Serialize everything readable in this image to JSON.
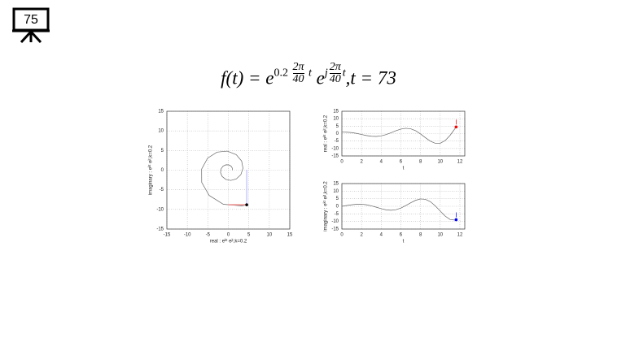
{
  "slide_number": "75",
  "formula": {
    "lhs": "f(t) =",
    "base": "e",
    "coef": "0.2",
    "num": "2π",
    "den": "40",
    "var": "t",
    "j": "j",
    "sep": ",",
    "tail": "t = 73"
  },
  "chart_data": [
    {
      "type": "line",
      "xlabel": "real : eᵏᵗ eʲᵗ,k=0.2",
      "ylabel": "imaginary : eᵏᵗ eʲᵗ,k=0.2",
      "x": [
        1,
        0.97,
        0.67,
        0.12,
        -0.58,
        -1.28,
        -1.78,
        -1.9,
        -1.53,
        -0.65,
        0.59,
        1.93,
        3.05,
        3.58,
        3.25,
        1.93,
        -0.23,
        -2.76,
        -5.06,
        -6.52,
        -6.5,
        -4.68,
        -1.21,
        3.34,
        4.49
      ],
      "series": [
        {
          "color": "#666666",
          "values": [
            0,
            0.52,
            1.02,
            1.34,
            1.37,
            1.02,
            0.32,
            -0.61,
            -1.59,
            -2.34,
            -2.62,
            -2.24,
            -1.16,
            0.48,
            2.31,
            3.95,
            4.85,
            4.59,
            3.06,
            0.27,
            -3.11,
            -6.43,
            -8.69,
            -9.1,
            -8.82
          ]
        }
      ],
      "xlim": [
        -15,
        15
      ],
      "ylim": [
        -15,
        15
      ],
      "xticks": [
        -15,
        -10,
        -5,
        0,
        5,
        10,
        15
      ],
      "yticks": [
        -15,
        -10,
        -5,
        0,
        5,
        10,
        15
      ],
      "grid": true,
      "marker_color": "#000000",
      "guides": true
    },
    {
      "type": "line",
      "xlabel": "t",
      "ylabel": "real : eᵏᵗ eʲᵗ,k=0.2",
      "x": [
        0,
        0.5,
        1,
        1.5,
        2,
        2.5,
        3,
        3.5,
        4,
        4.5,
        5,
        5.5,
        6,
        6.5,
        7,
        7.5,
        8,
        8.5,
        9,
        9.5,
        10,
        10.5,
        11,
        11.5,
        11.62
      ],
      "series": [
        {
          "color": "#666666",
          "values": [
            1,
            0.97,
            0.67,
            0.12,
            -0.58,
            -1.28,
            -1.78,
            -1.9,
            -1.53,
            -0.65,
            0.59,
            1.93,
            3.05,
            3.58,
            3.25,
            1.93,
            -0.23,
            -2.76,
            -5.06,
            -6.52,
            -6.5,
            -4.68,
            -1.21,
            3.34,
            4.49
          ]
        }
      ],
      "xlim": [
        0,
        12.5
      ],
      "ylim": [
        -15,
        15
      ],
      "xticks": [
        0,
        2,
        4,
        6,
        8,
        10,
        12
      ],
      "yticks": [
        -15,
        -10,
        -5,
        0,
        5,
        10,
        15
      ],
      "grid": true,
      "marker_color": "#ff0000",
      "guides": false
    },
    {
      "type": "line",
      "xlabel": "t",
      "ylabel": "imaginary : eᵏᵗ eʲᵗ,k=0.2",
      "x": [
        0,
        0.5,
        1,
        1.5,
        2,
        2.5,
        3,
        3.5,
        4,
        4.5,
        5,
        5.5,
        6,
        6.5,
        7,
        7.5,
        8,
        8.5,
        9,
        9.5,
        10,
        10.5,
        11,
        11.5,
        11.62
      ],
      "series": [
        {
          "color": "#666666",
          "values": [
            0,
            0.52,
            1.02,
            1.34,
            1.37,
            1.02,
            0.32,
            -0.61,
            -1.59,
            -2.34,
            -2.62,
            -2.24,
            -1.16,
            0.48,
            2.31,
            3.95,
            4.85,
            4.59,
            3.06,
            0.27,
            -3.11,
            -6.43,
            -8.69,
            -9.1,
            -8.82
          ]
        }
      ],
      "xlim": [
        0,
        12.5
      ],
      "ylim": [
        -15,
        15
      ],
      "xticks": [
        0,
        2,
        4,
        6,
        8,
        10,
        12
      ],
      "yticks": [
        -15,
        -10,
        -5,
        0,
        5,
        10,
        15
      ],
      "grid": true,
      "marker_color": "#0000ff",
      "guides": false
    }
  ]
}
